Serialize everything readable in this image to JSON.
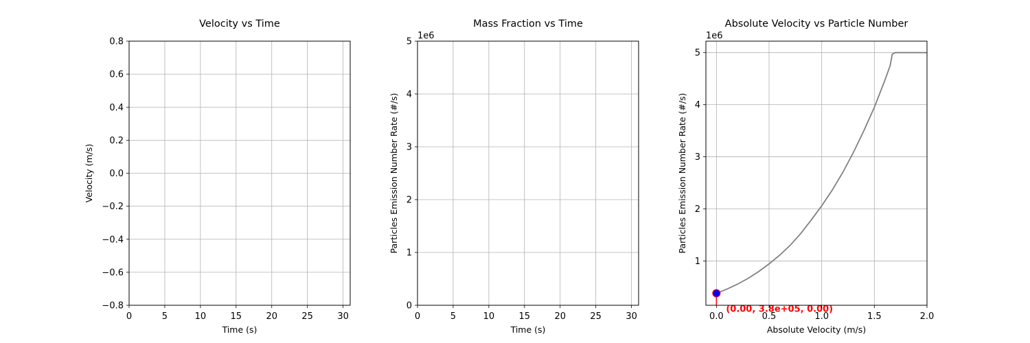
{
  "chart_data": [
    {
      "type": "line",
      "title": "Velocity vs Time",
      "xlabel": "Time (s)",
      "ylabel": "Velocity (m/s)",
      "xlim": [
        0,
        31
      ],
      "ylim": [
        -0.8,
        0.8
      ],
      "xticks": [
        0,
        5,
        10,
        15,
        20,
        25,
        30
      ],
      "xtick_labels": [
        "0",
        "5",
        "10",
        "15",
        "20",
        "25",
        "30"
      ],
      "yticks": [
        -0.8,
        -0.6,
        -0.4,
        -0.2,
        0.0,
        0.2,
        0.4,
        0.6,
        0.8
      ],
      "ytick_labels": [
        "−0.8",
        "−0.6",
        "−0.4",
        "−0.2",
        "0.0",
        "0.2",
        "0.4",
        "0.6",
        "0.8"
      ],
      "offset_text": "",
      "grid": true,
      "series": []
    },
    {
      "type": "line",
      "title": "Mass Fraction vs Time",
      "xlabel": "Time (s)",
      "ylabel": "Particles Emission Number Rate (#/s)",
      "xlim": [
        0,
        31
      ],
      "ylim": [
        0,
        5000000
      ],
      "xticks": [
        0,
        5,
        10,
        15,
        20,
        25,
        30
      ],
      "xtick_labels": [
        "0",
        "5",
        "10",
        "15",
        "20",
        "25",
        "30"
      ],
      "yticks": [
        0,
        1000000,
        2000000,
        3000000,
        4000000,
        5000000
      ],
      "ytick_labels": [
        "0",
        "1",
        "2",
        "3",
        "4",
        "5"
      ],
      "offset_text": "1e6",
      "grid": true,
      "series": []
    },
    {
      "type": "line",
      "title": "Absolute Velocity vs Particle Number",
      "xlabel": "Absolute Velocity (m/s)",
      "ylabel": "Particles Emission Number Rate (#/s)",
      "xlim": [
        -0.1,
        2.0
      ],
      "ylim": [
        150000,
        5220000
      ],
      "xticks": [
        0.0,
        0.5,
        1.0,
        1.5,
        2.0
      ],
      "xtick_labels": [
        "0.0",
        "0.5",
        "1.0",
        "1.5",
        "2.0"
      ],
      "yticks": [
        1000000,
        2000000,
        3000000,
        4000000,
        5000000
      ],
      "ytick_labels": [
        "1",
        "2",
        "3",
        "4",
        "5"
      ],
      "offset_text": "1e6",
      "grid": true,
      "series": [
        {
          "color": "#808080",
          "x": [
            0.0,
            0.1,
            0.2,
            0.3,
            0.4,
            0.5,
            0.6,
            0.7,
            0.8,
            0.9,
            1.0,
            1.1,
            1.2,
            1.3,
            1.4,
            1.5,
            1.6,
            1.65,
            1.67,
            1.7,
            1.8,
            1.9,
            2.0
          ],
          "y": [
            380000,
            460000,
            555000,
            665000,
            795000,
            945000,
            1110000,
            1300000,
            1525000,
            1785000,
            2060000,
            2360000,
            2700000,
            3080000,
            3500000,
            3950000,
            4470000,
            4750000,
            4970000,
            5000000,
            5000000,
            5000000,
            5000000
          ]
        }
      ],
      "marker": {
        "x": 0.0,
        "y": 380000,
        "color": "#0000ff",
        "edge_color": "#ff0000"
      },
      "annotation": {
        "text": "(0.00, 3.8e+05, 0.00)",
        "x": 0.0,
        "y": 380000,
        "color": "#ff0000"
      }
    }
  ]
}
